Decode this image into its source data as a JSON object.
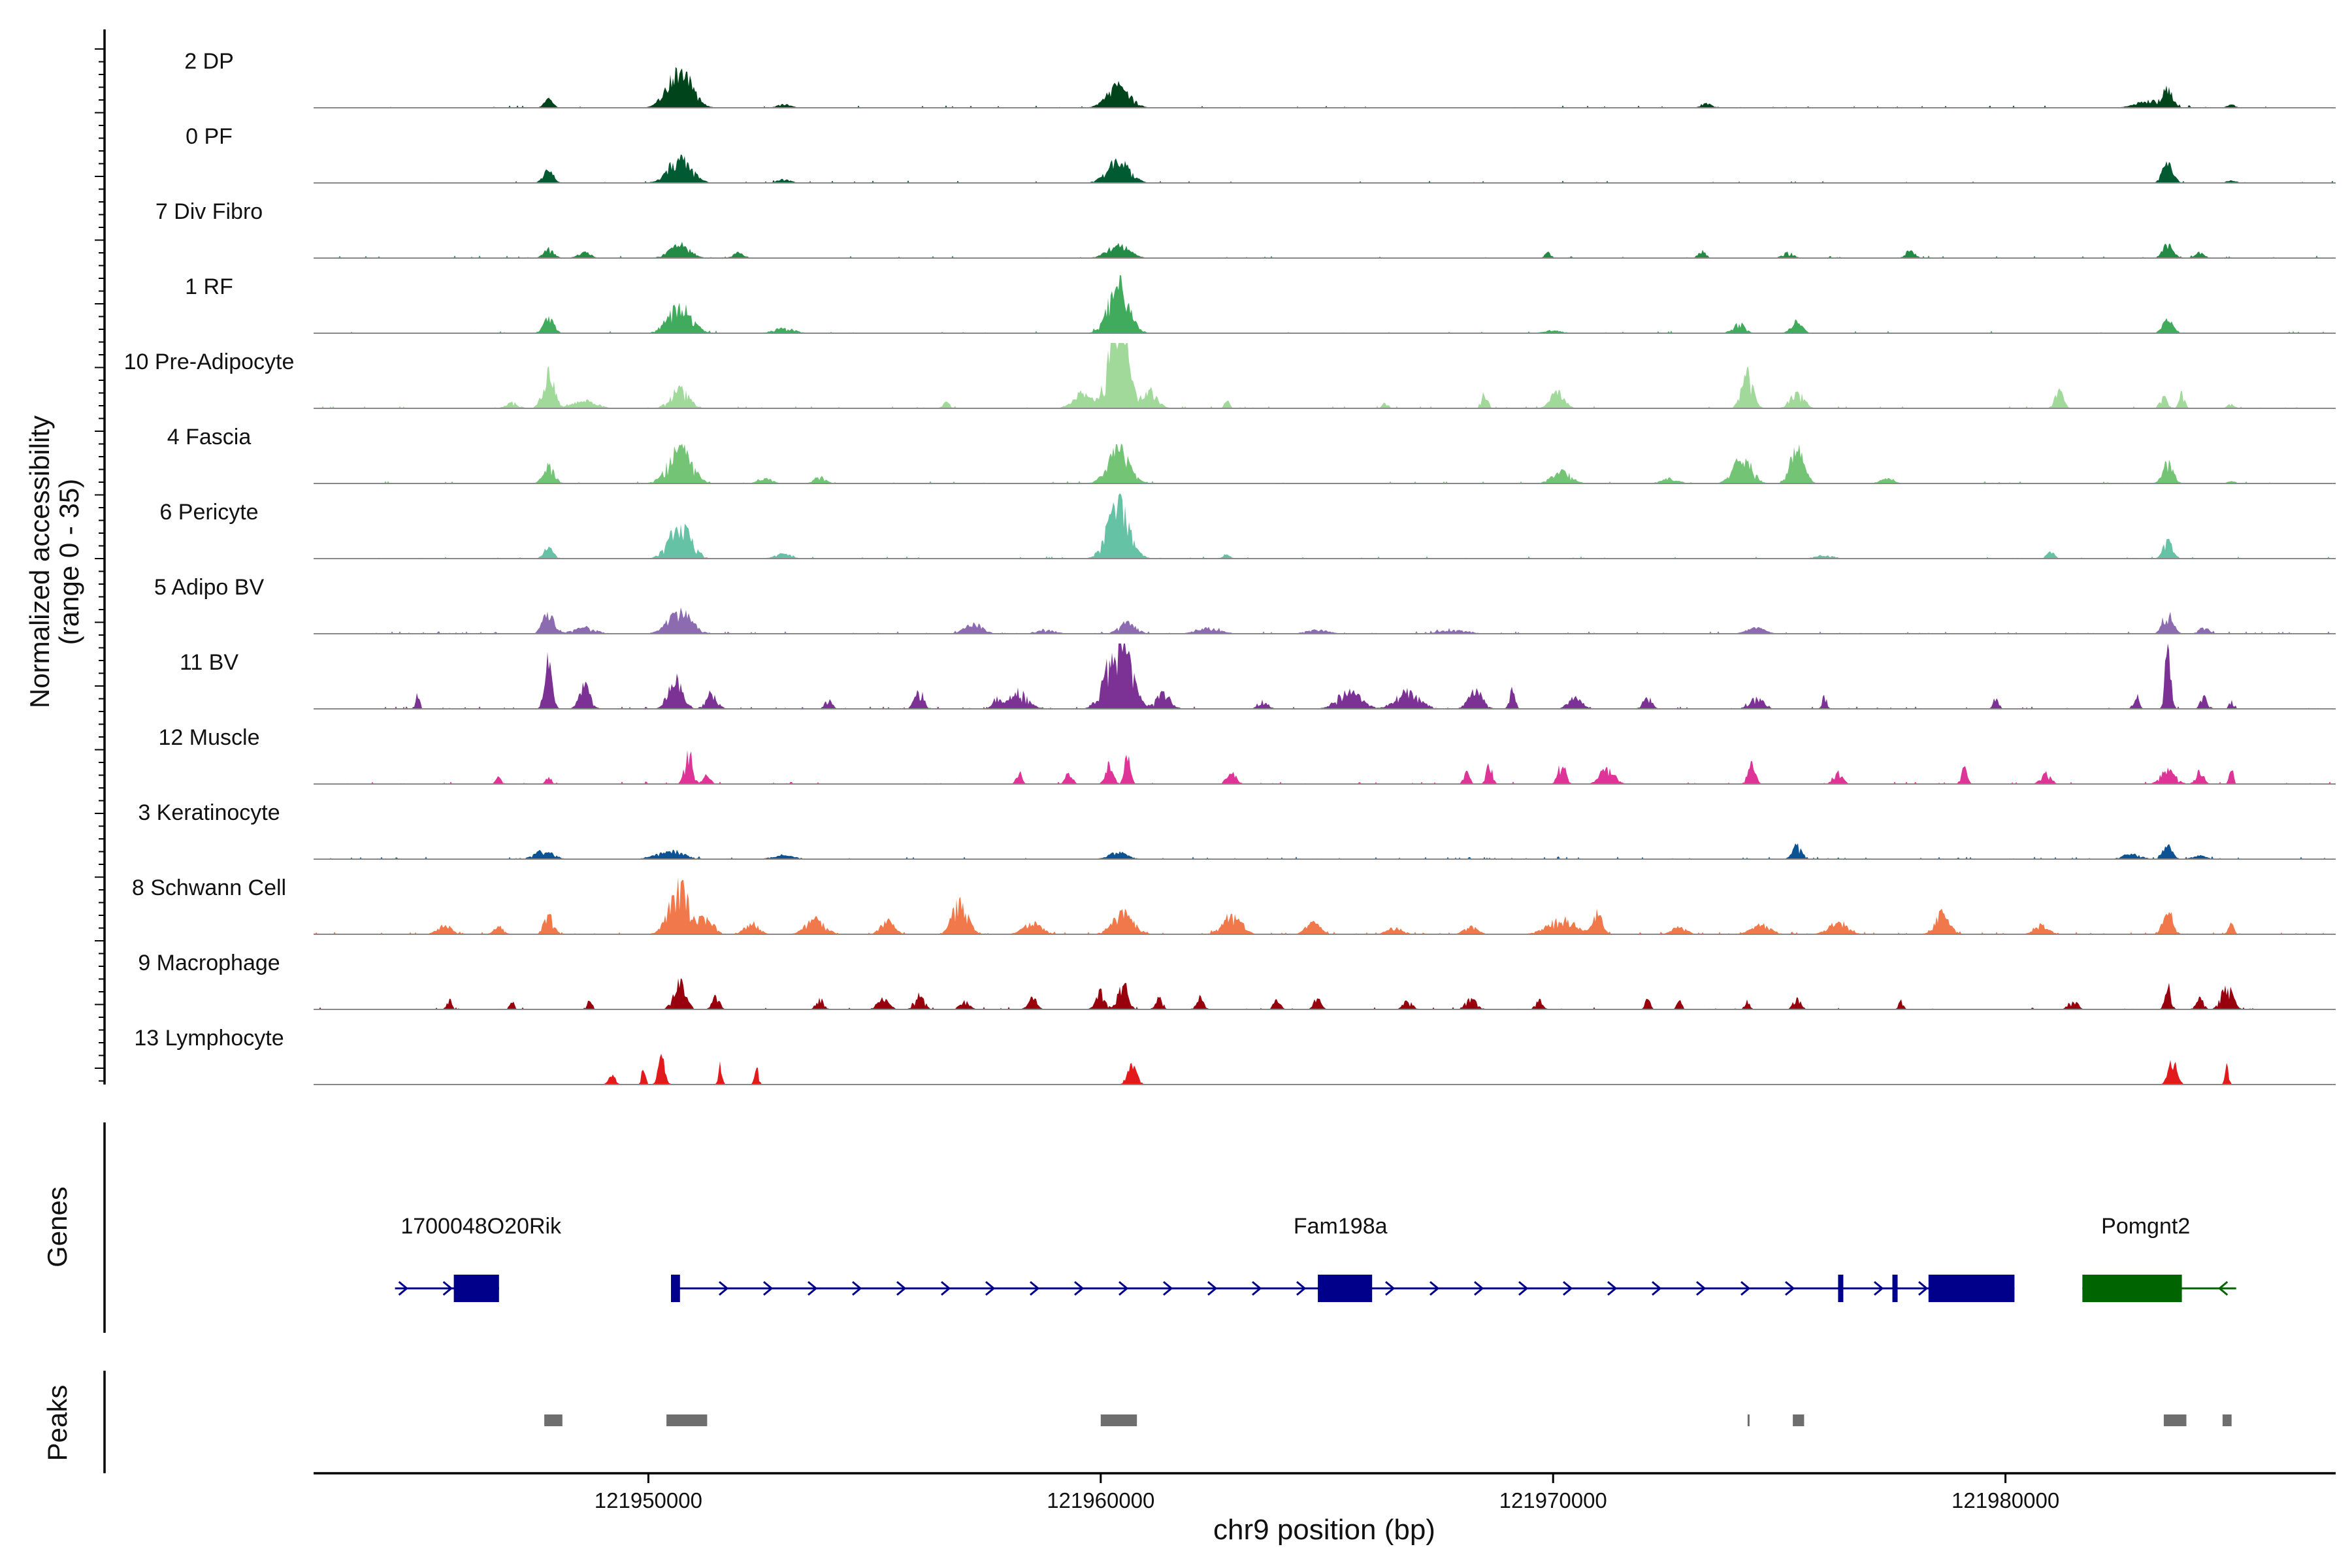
{
  "chart_data": {
    "type": "area",
    "chromosome": "chr9",
    "region": [
      121942600,
      121987300
    ],
    "xlabel": "chr9 position (bp)",
    "ylabel_line1": "Normalized accessibility",
    "ylabel_line2": "(range 0 - 35)",
    "y_range": [
      0,
      35
    ],
    "x_ticks": [
      121950000,
      121960000,
      121970000,
      121980000
    ],
    "x_tick_labels": [
      "121950000",
      "121960000",
      "121970000",
      "121980000"
    ],
    "panel_labels": {
      "genes": "Genes",
      "peaks": "Peaks"
    },
    "tracks": [
      {
        "name": "2 DP",
        "color": "#00441b",
        "noise": 0.02,
        "spread": 0.45,
        "seed": 11,
        "peaks": [
          [
            121947800,
            5,
            90
          ],
          [
            121950700,
            22,
            260
          ],
          [
            121960400,
            13,
            240
          ],
          [
            121953000,
            2,
            150
          ],
          [
            121973400,
            2.5,
            110
          ],
          [
            121983600,
            10,
            100
          ],
          [
            121983200,
            4,
            300
          ],
          [
            121985000,
            2,
            80
          ]
        ]
      },
      {
        "name": "0 PF",
        "color": "#005a32",
        "noise": 0.02,
        "spread": 0.45,
        "seed": 12,
        "peaks": [
          [
            121947800,
            7,
            110
          ],
          [
            121950700,
            14,
            250
          ],
          [
            121960400,
            13,
            240
          ],
          [
            121983600,
            12,
            110
          ],
          [
            121953000,
            2,
            150
          ],
          [
            121985000,
            1.5,
            100
          ]
        ]
      },
      {
        "name": "7 Div Fibro",
        "color": "#238b45",
        "noise": 0.03,
        "spread": 0.7,
        "seed": 13,
        "peaks": [
          [
            121947800,
            5,
            110
          ],
          [
            121948600,
            3,
            140
          ],
          [
            121950700,
            7,
            230
          ],
          [
            121952000,
            3,
            120
          ],
          [
            121960400,
            7,
            240
          ],
          [
            121969900,
            4,
            60
          ],
          [
            121973300,
            4,
            80
          ],
          [
            121975200,
            3,
            120
          ],
          [
            121977900,
            4,
            100
          ],
          [
            121983600,
            8,
            110
          ],
          [
            121984300,
            3,
            100
          ]
        ]
      },
      {
        "name": "1 RF",
        "color": "#41ab5d",
        "noise": 0.02,
        "spread": 0.45,
        "seed": 14,
        "peaks": [
          [
            121947800,
            9,
            110
          ],
          [
            121950700,
            16,
            250
          ],
          [
            121953000,
            3,
            220
          ],
          [
            121960400,
            28,
            220
          ],
          [
            121974100,
            6,
            130
          ],
          [
            121975400,
            7,
            120
          ],
          [
            121983600,
            8,
            110
          ],
          [
            121970000,
            1.5,
            200
          ]
        ]
      },
      {
        "name": "10 Pre-Adipocyte",
        "color": "#a1d99b",
        "noise": 0.03,
        "spread": 1.0,
        "seed": 15,
        "peaks": [
          [
            121947000,
            3,
            130
          ],
          [
            121947800,
            18,
            120
          ],
          [
            121948600,
            4,
            260
          ],
          [
            121950700,
            10,
            200
          ],
          [
            121959600,
            8,
            200
          ],
          [
            121960400,
            48,
            200
          ],
          [
            121961100,
            8,
            160
          ],
          [
            121968500,
            9,
            60
          ],
          [
            121970100,
            8,
            150
          ],
          [
            121974300,
            18,
            120
          ],
          [
            121975400,
            8,
            150
          ],
          [
            121981200,
            9,
            90
          ],
          [
            121983500,
            6,
            80
          ],
          [
            121983900,
            8,
            60
          ],
          [
            121985000,
            2,
            80
          ],
          [
            121962800,
            4,
            50
          ],
          [
            121966300,
            3,
            60
          ],
          [
            121956600,
            3,
            80
          ]
        ]
      },
      {
        "name": "4 Fascia",
        "color": "#74c476",
        "noise": 0.02,
        "spread": 0.5,
        "seed": 16,
        "peaks": [
          [
            121947800,
            10,
            120
          ],
          [
            121950700,
            20,
            250
          ],
          [
            121952600,
            3,
            150
          ],
          [
            121953800,
            4,
            120
          ],
          [
            121960400,
            20,
            230
          ],
          [
            121970200,
            7,
            200
          ],
          [
            121972600,
            3,
            180
          ],
          [
            121974200,
            15,
            200
          ],
          [
            121975400,
            20,
            150
          ],
          [
            121977400,
            3,
            150
          ],
          [
            121983600,
            13,
            110
          ],
          [
            121985000,
            1.5,
            80
          ]
        ]
      },
      {
        "name": "6 Pericyte",
        "color": "#66c2a4",
        "noise": 0.02,
        "spread": 0.5,
        "seed": 17,
        "peaks": [
          [
            121947800,
            7,
            100
          ],
          [
            121950700,
            20,
            230
          ],
          [
            121953000,
            3,
            180
          ],
          [
            121960400,
            32,
            230
          ],
          [
            121962800,
            2,
            80
          ],
          [
            121976000,
            2,
            200
          ],
          [
            121981000,
            4,
            80
          ],
          [
            121983600,
            11,
            100
          ]
        ]
      },
      {
        "name": "5 Adipo BV",
        "color": "#8c6bb1",
        "noise": 0.05,
        "spread": 0.9,
        "seed": 18,
        "peaks": [
          [
            121947800,
            11,
            120
          ],
          [
            121948600,
            3,
            250
          ],
          [
            121950700,
            12,
            250
          ],
          [
            121957200,
            5,
            200
          ],
          [
            121958800,
            2,
            200
          ],
          [
            121960600,
            6,
            180
          ],
          [
            121962400,
            3,
            250
          ],
          [
            121964800,
            2,
            250
          ],
          [
            121967800,
            2,
            300
          ],
          [
            121974500,
            3,
            200
          ],
          [
            121983600,
            12,
            110
          ],
          [
            121984400,
            3,
            120
          ]
        ]
      },
      {
        "name": "11 BV",
        "color": "#7b3294",
        "noise": 0.05,
        "spread": 1.6,
        "seed": 19,
        "peaks": [
          [
            121944900,
            10,
            40
          ],
          [
            121947800,
            22,
            80
          ],
          [
            121948600,
            10,
            120
          ],
          [
            121950600,
            14,
            150
          ],
          [
            121951400,
            7,
            120
          ],
          [
            121954000,
            4,
            80
          ],
          [
            121956000,
            8,
            100
          ],
          [
            121957700,
            5,
            80
          ],
          [
            121958200,
            8,
            200
          ],
          [
            121960400,
            35,
            250
          ],
          [
            121961400,
            7,
            150
          ],
          [
            121963600,
            4,
            100
          ],
          [
            121965500,
            8,
            250
          ],
          [
            121966800,
            8,
            250
          ],
          [
            121968300,
            8,
            150
          ],
          [
            121969100,
            9,
            60
          ],
          [
            121970500,
            5,
            150
          ],
          [
            121972100,
            5,
            100
          ],
          [
            121974500,
            5,
            150
          ],
          [
            121976000,
            6,
            50
          ],
          [
            121979800,
            5,
            60
          ],
          [
            121982900,
            6,
            60
          ],
          [
            121983600,
            28,
            60
          ],
          [
            121984400,
            5,
            80
          ],
          [
            121985000,
            5,
            40
          ]
        ]
      },
      {
        "name": "12 Muscle",
        "color": "#dd3497",
        "noise": 0.03,
        "spread": 1.2,
        "seed": 20,
        "peaks": [
          [
            121946700,
            4,
            60
          ],
          [
            121947800,
            3,
            60
          ],
          [
            121950900,
            18,
            80
          ],
          [
            121951300,
            4,
            80
          ],
          [
            121958200,
            6,
            60
          ],
          [
            121959300,
            5,
            80
          ],
          [
            121960200,
            10,
            80
          ],
          [
            121960600,
            17,
            60
          ],
          [
            121962900,
            6,
            100
          ],
          [
            121968100,
            6,
            60
          ],
          [
            121968600,
            10,
            60
          ],
          [
            121970200,
            10,
            80
          ],
          [
            121971200,
            8,
            150
          ],
          [
            121974400,
            10,
            80
          ],
          [
            121976300,
            6,
            100
          ],
          [
            121979100,
            8,
            60
          ],
          [
            121980900,
            6,
            100
          ],
          [
            121983600,
            7,
            150
          ],
          [
            121984300,
            7,
            80
          ],
          [
            121985000,
            9,
            40
          ]
        ]
      },
      {
        "name": "3 Keratinocyte",
        "color": "#0c5394",
        "noise": 0.04,
        "spread": 0.35,
        "seed": 21,
        "peaks": [
          [
            121947700,
            5,
            200
          ],
          [
            121950500,
            5,
            300
          ],
          [
            121960400,
            4,
            200
          ],
          [
            121953000,
            2,
            250
          ],
          [
            121975400,
            8,
            100
          ],
          [
            121983600,
            8,
            100
          ],
          [
            121982800,
            3,
            200
          ],
          [
            121984300,
            2,
            150
          ]
        ]
      },
      {
        "name": "8 Schwann Cell",
        "color": "#f0784a",
        "noise": 0.06,
        "spread": 0.85,
        "seed": 22,
        "peaks": [
          [
            121945500,
            5,
            150
          ],
          [
            121946700,
            4,
            100
          ],
          [
            121947800,
            10,
            100
          ],
          [
            121950700,
            25,
            220
          ],
          [
            121951300,
            8,
            150
          ],
          [
            121952300,
            6,
            150
          ],
          [
            121953700,
            8,
            200
          ],
          [
            121955300,
            7,
            150
          ],
          [
            121956900,
            18,
            160
          ],
          [
            121958500,
            6,
            200
          ],
          [
            121960500,
            12,
            220
          ],
          [
            121962900,
            10,
            200
          ],
          [
            121964700,
            6,
            150
          ],
          [
            121966500,
            4,
            150
          ],
          [
            121968200,
            4,
            150
          ],
          [
            121970200,
            8,
            300
          ],
          [
            121971000,
            11,
            100
          ],
          [
            121974600,
            5,
            200
          ],
          [
            121976300,
            6,
            200
          ],
          [
            121978600,
            11,
            160
          ],
          [
            121980800,
            5,
            150
          ],
          [
            121983600,
            13,
            100
          ],
          [
            121985000,
            6,
            60
          ],
          [
            121972800,
            4,
            150
          ]
        ]
      },
      {
        "name": "9 Macrophage",
        "color": "#99000d",
        "noise": 0.03,
        "spread": 1.5,
        "seed": 23,
        "peaks": [
          [
            121945600,
            5,
            50
          ],
          [
            121947000,
            4,
            50
          ],
          [
            121948700,
            4,
            50
          ],
          [
            121950700,
            12,
            130
          ],
          [
            121951500,
            6,
            80
          ],
          [
            121953800,
            5,
            80
          ],
          [
            121955200,
            5,
            120
          ],
          [
            121956000,
            7,
            100
          ],
          [
            121957000,
            4,
            100
          ],
          [
            121958500,
            5,
            100
          ],
          [
            121960000,
            8,
            100
          ],
          [
            121960500,
            13,
            100
          ],
          [
            121961300,
            5,
            80
          ],
          [
            121962200,
            5,
            80
          ],
          [
            121963900,
            4,
            80
          ],
          [
            121964800,
            5,
            80
          ],
          [
            121966800,
            4,
            100
          ],
          [
            121968200,
            5,
            120
          ],
          [
            121969700,
            4,
            80
          ],
          [
            121972100,
            5,
            50
          ],
          [
            121972800,
            4,
            50
          ],
          [
            121974300,
            4,
            50
          ],
          [
            121975400,
            5,
            80
          ],
          [
            121977700,
            4,
            50
          ],
          [
            121981500,
            4,
            100
          ],
          [
            121983600,
            12,
            60
          ],
          [
            121984300,
            5,
            80
          ],
          [
            121984900,
            12,
            120
          ]
        ]
      },
      {
        "name": "13 Lymphocyte",
        "color": "#e31a1c",
        "noise": 0.0,
        "spread": 0.2,
        "seed": 24,
        "peaks": [
          [
            121949200,
            6,
            70
          ],
          [
            121949900,
            12,
            40
          ],
          [
            121950300,
            18,
            70
          ],
          [
            121951600,
            12,
            40
          ],
          [
            121952400,
            10,
            40
          ],
          [
            121960700,
            12,
            100
          ],
          [
            121983700,
            15,
            90
          ],
          [
            121984900,
            12,
            40
          ]
        ]
      }
    ],
    "genes": [
      {
        "name": "1700048O20Rik",
        "strand": "+",
        "color": "#00008b",
        "start": 121944400,
        "end": 121946700,
        "label_pos": 121946300,
        "exons": [
          [
            121945700,
            121946700
          ]
        ]
      },
      {
        "name": "Fam198a",
        "strand": "+",
        "color": "#00008b",
        "start": 121950500,
        "end": 121980200,
        "label_pos": 121965300,
        "exons": [
          [
            121950500,
            121950700
          ],
          [
            121964800,
            121966000
          ],
          [
            121976300,
            121976400
          ],
          [
            121977500,
            121977600
          ],
          [
            121978300,
            121980200
          ]
        ]
      },
      {
        "name": "Pomgnt2",
        "strand": "-",
        "color": "#006400",
        "start": 121981700,
        "end": 121985100,
        "label_pos": 121983100,
        "exons": [
          [
            121981700,
            121983900
          ]
        ]
      }
    ],
    "peaks": [
      [
        121947700,
        121948100
      ],
      [
        121950400,
        121951300
      ],
      [
        121960000,
        121960800
      ],
      [
        121974300,
        121974340
      ],
      [
        121975300,
        121975550
      ],
      [
        121983500,
        121984000
      ],
      [
        121984800,
        121985000
      ]
    ]
  }
}
